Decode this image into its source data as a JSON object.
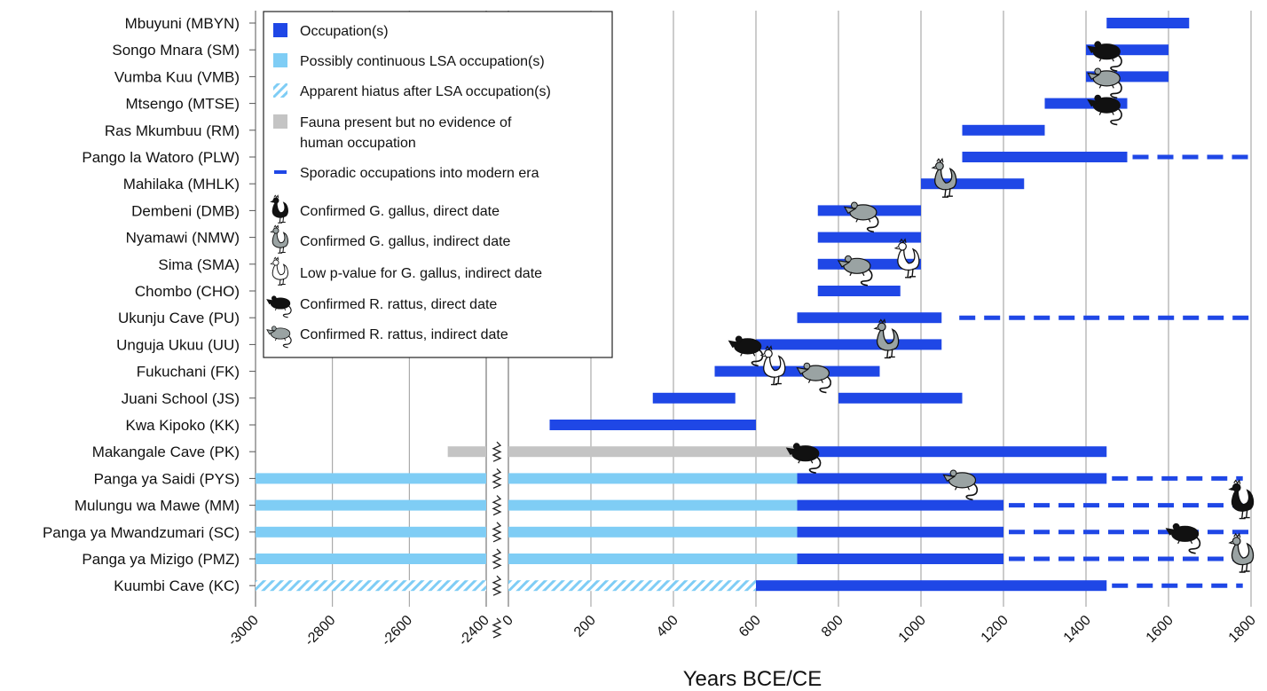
{
  "chart_data": {
    "type": "bar",
    "xlabel": "Years BCE/CE",
    "ylabel": "",
    "segments": [
      {
        "name": "BCE",
        "xlim": [
          -3000,
          -2400
        ],
        "ticks": [
          -3000,
          -2800,
          -2600,
          -2400
        ]
      },
      {
        "name": "CE",
        "xlim": [
          0,
          1800
        ],
        "ticks": [
          0,
          200,
          400,
          600,
          800,
          1000,
          1200,
          1400,
          1600,
          1800
        ]
      }
    ],
    "grid": true,
    "legend_position": "top-left",
    "legend": [
      {
        "key": "occupation",
        "label": "Occupation(s)"
      },
      {
        "key": "lsa",
        "label": "Possibly continuous LSA occupation(s)"
      },
      {
        "key": "hiatus",
        "label": "Apparent hiatus after LSA occupation(s)"
      },
      {
        "key": "fauna",
        "label": "Fauna present but no evidence of\nhuman occupation"
      },
      {
        "key": "sporadic",
        "label": "Sporadic occupations into modern era"
      },
      {
        "key": "chicken_direct",
        "label": "Confirmed G. gallus, direct date"
      },
      {
        "key": "chicken_indirect",
        "label": "Confirmed G. gallus, indirect date"
      },
      {
        "key": "chicken_lowp",
        "label": "Low p-value for G. gallus, indirect date"
      },
      {
        "key": "rat_direct",
        "label": "Confirmed R. rattus, direct date"
      },
      {
        "key": "rat_indirect",
        "label": "Confirmed R. rattus, indirect date"
      }
    ],
    "colors": {
      "occupation": "#1f47e6",
      "lsa": "#7fcdf5",
      "fauna": "#c4c4c4",
      "grid": "#9a9a9a",
      "chicken_direct": "#111111",
      "chicken_indirect": "#9aa3a3",
      "rat_direct": "#111111",
      "rat_indirect": "#9aa3a3"
    },
    "sites": [
      {
        "label": "Mbuyuni (MBYN)",
        "bars": [
          {
            "type": "occupation",
            "start": 1450,
            "end": 1650
          }
        ],
        "markers": []
      },
      {
        "label": "Songo Mnara (SM)",
        "bars": [
          {
            "type": "occupation",
            "start": 1400,
            "end": 1600
          }
        ],
        "markers": [
          {
            "type": "rat_direct",
            "x": 1450
          }
        ]
      },
      {
        "label": "Vumba Kuu (VMB)",
        "bars": [
          {
            "type": "occupation",
            "start": 1400,
            "end": 1600
          }
        ],
        "markers": [
          {
            "type": "rat_indirect",
            "x": 1450
          }
        ]
      },
      {
        "label": "Mtsengo (MTSE)",
        "bars": [
          {
            "type": "occupation",
            "start": 1300,
            "end": 1500
          }
        ],
        "markers": [
          {
            "type": "rat_direct",
            "x": 1450
          }
        ]
      },
      {
        "label": "Ras Mkumbuu (RM)",
        "bars": [
          {
            "type": "occupation",
            "start": 1100,
            "end": 1300
          }
        ],
        "markers": []
      },
      {
        "label": "Pango la Watoro (PLW)",
        "bars": [
          {
            "type": "occupation",
            "start": 1100,
            "end": 1500
          },
          {
            "type": "sporadic",
            "start": 1500,
            "end": 1800
          }
        ],
        "markers": []
      },
      {
        "label": "Mahilaka (MHLK)",
        "bars": [
          {
            "type": "occupation",
            "start": 1000,
            "end": 1250
          }
        ],
        "markers": [
          {
            "type": "chicken_indirect",
            "x": 1060
          }
        ]
      },
      {
        "label": "Dembeni (DMB)",
        "bars": [
          {
            "type": "occupation",
            "start": 750,
            "end": 1000
          }
        ],
        "markers": [
          {
            "type": "rat_indirect",
            "x": 860
          }
        ]
      },
      {
        "label": "Nyamawi (NMW)",
        "bars": [
          {
            "type": "occupation",
            "start": 750,
            "end": 1000
          }
        ],
        "markers": []
      },
      {
        "label": "Sima (SMA)",
        "bars": [
          {
            "type": "occupation",
            "start": 750,
            "end": 1000
          }
        ],
        "markers": [
          {
            "type": "rat_indirect",
            "x": 845
          },
          {
            "type": "chicken_lowp",
            "x": 970
          }
        ]
      },
      {
        "label": "Chombo (CHO)",
        "bars": [
          {
            "type": "occupation",
            "start": 750,
            "end": 950
          }
        ],
        "markers": []
      },
      {
        "label": "Ukunju Cave (PU)",
        "bars": [
          {
            "type": "occupation",
            "start": 700,
            "end": 1050
          },
          {
            "type": "sporadic",
            "start": 1080,
            "end": 1800
          }
        ],
        "markers": []
      },
      {
        "label": "Unguja Ukuu (UU)",
        "bars": [
          {
            "type": "occupation",
            "start": 600,
            "end": 1050
          }
        ],
        "markers": [
          {
            "type": "rat_direct",
            "x": 580
          },
          {
            "type": "chicken_indirect",
            "x": 920
          }
        ]
      },
      {
        "label": "Fukuchani (FK)",
        "bars": [
          {
            "type": "occupation",
            "start": 500,
            "end": 900
          }
        ],
        "markers": [
          {
            "type": "chicken_lowp",
            "x": 645
          },
          {
            "type": "rat_indirect",
            "x": 745
          }
        ]
      },
      {
        "label": "Juani School (JS)",
        "bars": [
          {
            "type": "occupation",
            "start": 350,
            "end": 550
          },
          {
            "type": "occupation",
            "start": 800,
            "end": 1100
          }
        ],
        "markers": []
      },
      {
        "label": "Kwa Kipoko (KK)",
        "bars": [
          {
            "type": "occupation",
            "start": 100,
            "end": 600
          }
        ],
        "markers": []
      },
      {
        "label": "Makangale Cave (PK)",
        "bars": [
          {
            "type": "fauna",
            "start": -2500,
            "end": 700
          },
          {
            "type": "occupation",
            "start": 700,
            "end": 1450
          }
        ],
        "markers": [
          {
            "type": "rat_direct",
            "x": 720
          }
        ]
      },
      {
        "label": "Panga ya Saidi (PYS)",
        "bars": [
          {
            "type": "lsa",
            "start": -3000,
            "end": 700
          },
          {
            "type": "occupation",
            "start": 700,
            "end": 1450
          },
          {
            "type": "sporadic",
            "start": 1450,
            "end": 1780
          }
        ],
        "markers": [
          {
            "type": "rat_indirect",
            "x": 1100
          }
        ]
      },
      {
        "label": "Mulungu wa Mawe (MM)",
        "bars": [
          {
            "type": "lsa",
            "start": -3000,
            "end": 700
          },
          {
            "type": "occupation",
            "start": 700,
            "end": 1200
          },
          {
            "type": "sporadic",
            "start": 1200,
            "end": 1780
          }
        ],
        "markers": [
          {
            "type": "chicken_direct",
            "x": 1780
          }
        ]
      },
      {
        "label": "Panga ya Mwandzumari (SC)",
        "bars": [
          {
            "type": "lsa",
            "start": -3000,
            "end": 700
          },
          {
            "type": "occupation",
            "start": 700,
            "end": 1200
          },
          {
            "type": "sporadic",
            "start": 1200,
            "end": 1800
          }
        ],
        "markers": [
          {
            "type": "rat_direct",
            "x": 1640
          }
        ]
      },
      {
        "label": "Panga ya Mizigo (PMZ)",
        "bars": [
          {
            "type": "lsa",
            "start": -3000,
            "end": 700
          },
          {
            "type": "occupation",
            "start": 700,
            "end": 1200
          },
          {
            "type": "sporadic",
            "start": 1200,
            "end": 1780
          }
        ],
        "markers": [
          {
            "type": "chicken_indirect",
            "x": 1780
          }
        ]
      },
      {
        "label": "Kuumbi Cave (KC)",
        "bars": [
          {
            "type": "hiatus",
            "start": -3000,
            "end": 600
          },
          {
            "type": "occupation",
            "start": 600,
            "end": 1450
          },
          {
            "type": "sporadic",
            "start": 1450,
            "end": 1780
          }
        ],
        "markers": []
      }
    ]
  }
}
